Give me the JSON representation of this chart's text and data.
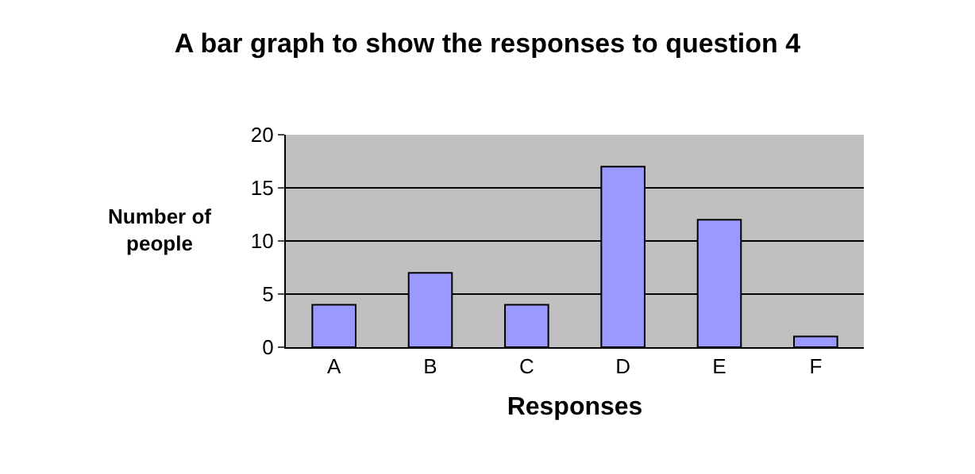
{
  "chart_data": {
    "type": "bar",
    "title": "A bar graph to show the responses to question 4",
    "xlabel": "Responses",
    "ylabel": "Number of\npeople",
    "categories": [
      "A",
      "B",
      "C",
      "D",
      "E",
      "F"
    ],
    "values": [
      4,
      7,
      4,
      17,
      12,
      1
    ],
    "color": "#9999ff",
    "ylim": [
      0,
      20
    ],
    "yticks": [
      0,
      5,
      10,
      15,
      20
    ],
    "grid": "y",
    "legend": false
  }
}
